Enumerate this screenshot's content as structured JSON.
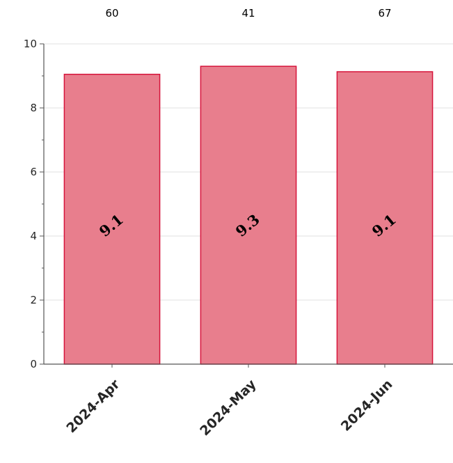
{
  "chart_data": {
    "type": "bar",
    "categories": [
      "2024-Apr",
      "2024-May",
      "2024-Jun"
    ],
    "values": [
      9.05,
      9.3,
      9.13
    ],
    "bar_labels": [
      "9.1",
      "9.3",
      "9.1"
    ],
    "top_annotations": [
      "60",
      "41",
      "67"
    ],
    "title": "",
    "xlabel": "",
    "ylabel": "",
    "ylim": [
      0,
      10
    ],
    "yticks": [
      0,
      2,
      4,
      6,
      8,
      10
    ],
    "grid": true,
    "legend": "none",
    "colors": {
      "bar_fill": "#e87e8d",
      "bar_edge": "#d6133a",
      "grid": "#e0e0e0",
      "axis": "#555555"
    }
  }
}
